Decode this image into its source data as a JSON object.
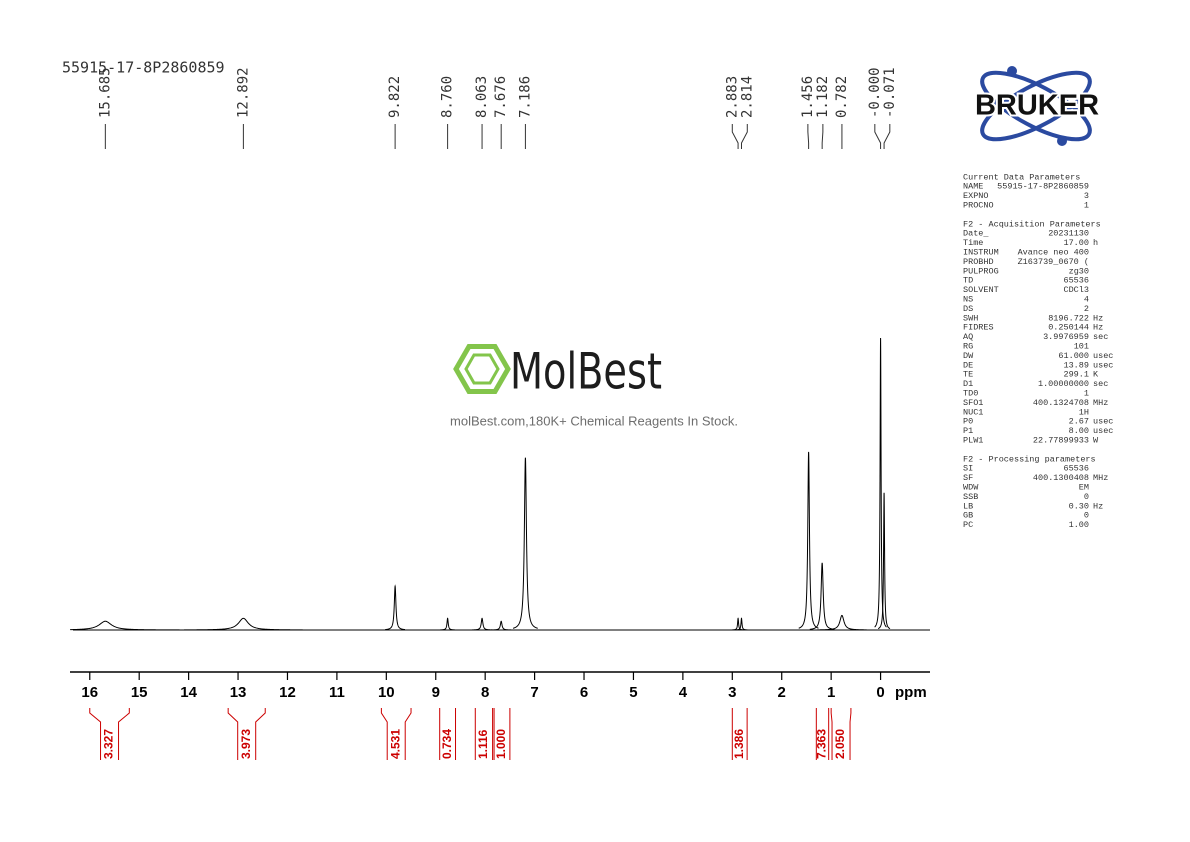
{
  "chart_data": {
    "type": "nmr",
    "title": "55915-17-8P2860859",
    "xlabel": "ppm",
    "xlim": [
      16.4,
      -1.0
    ],
    "xticks": [
      16,
      15,
      14,
      13,
      12,
      11,
      10,
      9,
      8,
      7,
      6,
      5,
      4,
      3,
      2,
      1,
      0
    ],
    "ylim": [
      0,
      100
    ],
    "color": "#000000",
    "integral_color": "#cc0000",
    "peaks": [
      15.685,
      12.892,
      9.822,
      {
        "value": 8.76,
        "label": "8.760"
      },
      8.063,
      7.676,
      7.186,
      2.883,
      2.814,
      1.456,
      1.182,
      0.782,
      {
        "value": 0,
        "label": "-0.000"
      },
      -0.071
    ],
    "heights": [
      3,
      4,
      15,
      4,
      4,
      3,
      59,
      4,
      4,
      61,
      23,
      5,
      100,
      47
    ],
    "linewidths": [
      0.15,
      0.12,
      0.02,
      0.015,
      0.02,
      0.02,
      0.025,
      0.012,
      0.012,
      0.02,
      0.025,
      0.05,
      0.012,
      0.012
    ],
    "integrals": [
      {
        "from": 16.0,
        "to": 15.2,
        "value": 3.327
      },
      {
        "from": 13.2,
        "to": 12.45,
        "value": 3.973
      },
      {
        "from": 10.1,
        "to": 9.5,
        "value": 4.531
      },
      {
        "from": 8.92,
        "to": 8.6,
        "value": 0.734
      },
      {
        "from": 8.2,
        "to": 7.85,
        "value": 1.116
      },
      {
        "from": 7.82,
        "to": 7.5,
        "value": {
          "value": 1,
          "label": "1.000"
        }
      },
      {
        "from": 3.0,
        "to": 2.7,
        "value": 1.386
      },
      {
        "from": 1.3,
        "to": 1.05,
        "value": 7.363
      },
      {
        "from": 1.0,
        "to": 0.6,
        "value": {
          "value": 2.05,
          "label": "2.050"
        }
      }
    ]
  },
  "logo": "BRUKER",
  "watermark": {
    "brand": "MolBest",
    "tagline": "molBest.com,180K+ Chemical Reagents In Stock."
  },
  "parameters": [
    {
      "heading": "Current Data Parameters",
      "rows": [
        [
          "NAME",
          "55915-17-8P2860859"
        ],
        [
          "EXPNO",
          "3"
        ],
        [
          "PROCNO",
          "1"
        ]
      ]
    },
    {
      "heading": "F2 - Acquisition Parameters",
      "rows": [
        [
          "Date_",
          "20231130"
        ],
        [
          "Time",
          "17.00",
          "h"
        ],
        [
          "INSTRUM",
          "Avance neo 400"
        ],
        [
          "PROBHD",
          "Z163739_0670 ("
        ],
        [
          "PULPROG",
          "zg30"
        ],
        [
          "TD",
          "65536"
        ],
        [
          "SOLVENT",
          "CDCl3"
        ],
        [
          "NS",
          "4"
        ],
        [
          "DS",
          "2"
        ],
        [
          "SWH",
          "8196.722",
          "Hz"
        ],
        [
          "FIDRES",
          "0.250144",
          "Hz"
        ],
        [
          "AQ",
          "3.9976959",
          "sec"
        ],
        [
          "RG",
          "101"
        ],
        [
          "DW",
          "61.000",
          "usec"
        ],
        [
          "DE",
          "13.89",
          "usec"
        ],
        [
          "TE",
          "299.1",
          "K"
        ],
        [
          "D1",
          "1.00000000",
          "sec"
        ],
        [
          "TD0",
          "1"
        ],
        [
          "SFO1",
          "400.1324708",
          "MHz"
        ],
        [
          "NUC1",
          "1H"
        ],
        [
          "P0",
          "2.67",
          "usec"
        ],
        [
          "P1",
          "8.00",
          "usec"
        ],
        [
          "PLW1",
          "22.77899933",
          "W"
        ]
      ]
    },
    {
      "heading": "F2 - Processing parameters",
      "rows": [
        [
          "SI",
          "65536"
        ],
        [
          "SF",
          "400.1300408",
          "MHz"
        ],
        [
          "WDW",
          "EM"
        ],
        [
          "SSB",
          "0"
        ],
        [
          "LB",
          "0.30",
          "Hz"
        ],
        [
          "GB",
          "0"
        ],
        [
          "PC",
          "1.00"
        ]
      ]
    }
  ]
}
